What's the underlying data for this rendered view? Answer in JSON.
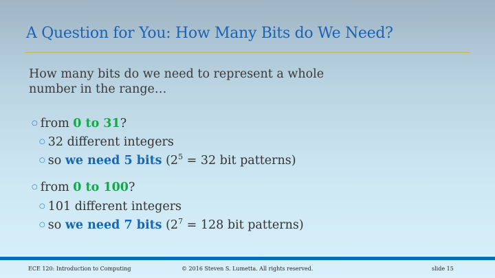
{
  "title": "A Question for You: How Many Bits do We Need?",
  "intro": "How many bits do we need to represent a whole number in the range…",
  "bullet_icon": "circle-bullet",
  "groups": [
    {
      "pre": "from ",
      "range": "0 to 31",
      "post": "?",
      "sub1": "32 different integers",
      "sub2_pre": "so ",
      "sub2_bold": "we need 5 bits",
      "sub2_open": " (2",
      "sub2_exp": "5",
      "sub2_rest": " = 32 bit patterns)"
    },
    {
      "pre": "from ",
      "range": "0 to 100",
      "post": "?",
      "sub1": "101 different integers",
      "sub2_pre": "so ",
      "sub2_bold": "we need 7 bits",
      "sub2_open": " (2",
      "sub2_exp": "7",
      "sub2_rest": " = 128 bit patterns)"
    }
  ],
  "footer": {
    "course": "ECE 120: Introduction to Computing",
    "copyright": "© 2016 Steven S. Lumetta.  All rights reserved.",
    "slide": "slide 15"
  },
  "colors": {
    "title": "#1d63b0",
    "range": "#14a84a",
    "emphasis": "#1668b4",
    "footer_bar": "#0b6cb4",
    "rule": "#c9b55a"
  }
}
